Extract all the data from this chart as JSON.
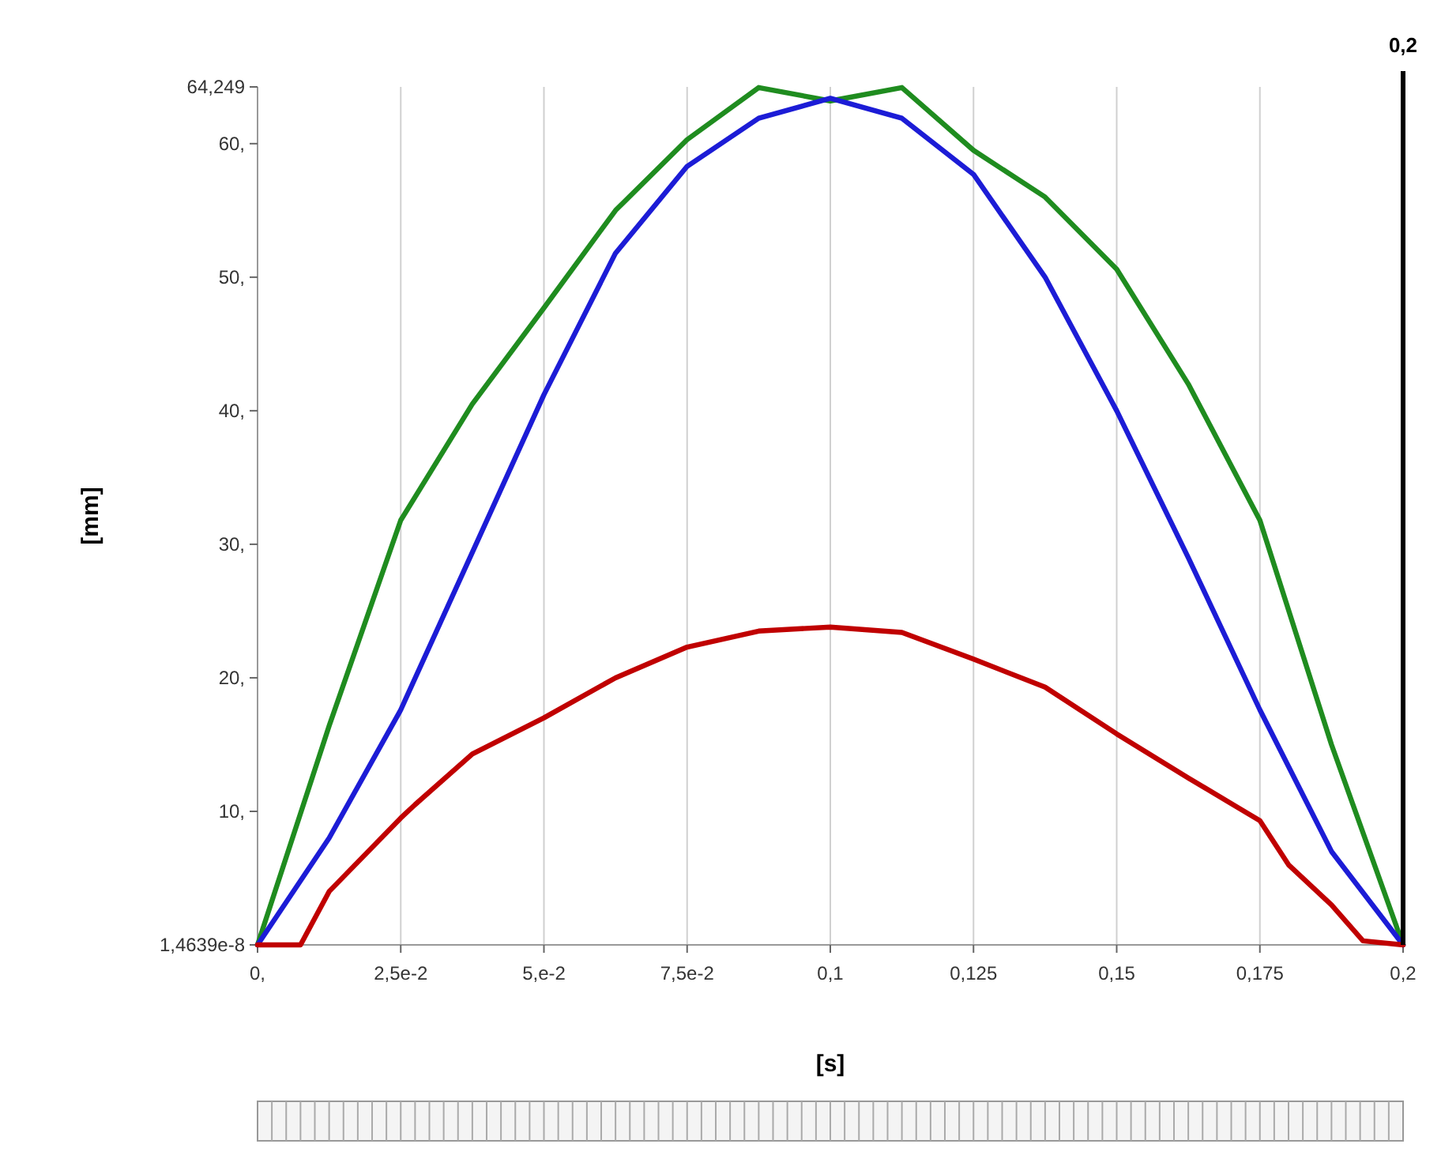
{
  "chart_data": {
    "type": "line",
    "xlabel": "[s]",
    "ylabel": "[mm]",
    "xlim": [
      0,
      0.2
    ],
    "ylim": [
      1.4639e-08,
      64.249
    ],
    "xticks": [
      {
        "value": 0,
        "label": "0,"
      },
      {
        "value": 0.025,
        "label": "2,5e-2"
      },
      {
        "value": 0.05,
        "label": "5,e-2"
      },
      {
        "value": 0.075,
        "label": "7,5e-2"
      },
      {
        "value": 0.1,
        "label": "0,1"
      },
      {
        "value": 0.125,
        "label": "0,125"
      },
      {
        "value": 0.15,
        "label": "0,15"
      },
      {
        "value": 0.175,
        "label": "0,175"
      },
      {
        "value": 0.2,
        "label": "0,2"
      }
    ],
    "yticks": [
      {
        "value": 1.4639e-08,
        "label": "1,4639e-8"
      },
      {
        "value": 10,
        "label": "10,"
      },
      {
        "value": 20,
        "label": "20,"
      },
      {
        "value": 30,
        "label": "30,"
      },
      {
        "value": 40,
        "label": "40,"
      },
      {
        "value": 50,
        "label": "50,"
      },
      {
        "value": 60,
        "label": "60,"
      },
      {
        "value": 64.249,
        "label": "64,249"
      }
    ],
    "grid": "x",
    "line_style": "solid",
    "ref_lines": [
      {
        "axis": "x",
        "value": 0.2,
        "label": "0,2",
        "color": "#000000"
      }
    ],
    "series": [
      {
        "color": "#1f8c1f",
        "x": [
          0,
          0.0125,
          0.025,
          0.0375,
          0.05,
          0.0625,
          0.075,
          0.0875,
          0.1,
          0.1125,
          0.125,
          0.1375,
          0.15,
          0.1625,
          0.175,
          0.1875,
          0.2
        ],
        "values": [
          1.4639e-08,
          16.4,
          31.8,
          40.5,
          47.7,
          55,
          60.3,
          64.2,
          63.2,
          64.2,
          59.5,
          56,
          50.6,
          42,
          31.8,
          15,
          1.4639e-08
        ]
      },
      {
        "color": "#1c1cd6",
        "x": [
          0,
          0.0125,
          0.025,
          0.0375,
          0.05,
          0.0625,
          0.075,
          0.0875,
          0.1,
          0.1125,
          0.125,
          0.1375,
          0.15,
          0.1625,
          0.175,
          0.1875,
          0.2
        ],
        "values": [
          1.4639e-08,
          8,
          17.6,
          29.4,
          41.2,
          51.8,
          58.3,
          61.9,
          63.4,
          61.9,
          57.7,
          50,
          40,
          29,
          17.6,
          7,
          1.4639e-08
        ]
      },
      {
        "color": "#c00000",
        "x": [
          0,
          0.0075,
          0.0125,
          0.025,
          0.0275,
          0.0375,
          0.05,
          0.0625,
          0.075,
          0.0875,
          0.1,
          0.1125,
          0.125,
          0.1375,
          0.15,
          0.1625,
          0.175,
          0.18,
          0.1875,
          0.193,
          0.2
        ],
        "values": [
          1.4639e-08,
          1.4639e-08,
          4,
          9.5,
          10.5,
          14.3,
          17,
          20,
          22.3,
          23.5,
          23.8,
          23.4,
          21.4,
          19.3,
          15.8,
          12.5,
          9.3,
          6,
          3,
          0.3,
          1.4639e-08
        ]
      }
    ]
  }
}
